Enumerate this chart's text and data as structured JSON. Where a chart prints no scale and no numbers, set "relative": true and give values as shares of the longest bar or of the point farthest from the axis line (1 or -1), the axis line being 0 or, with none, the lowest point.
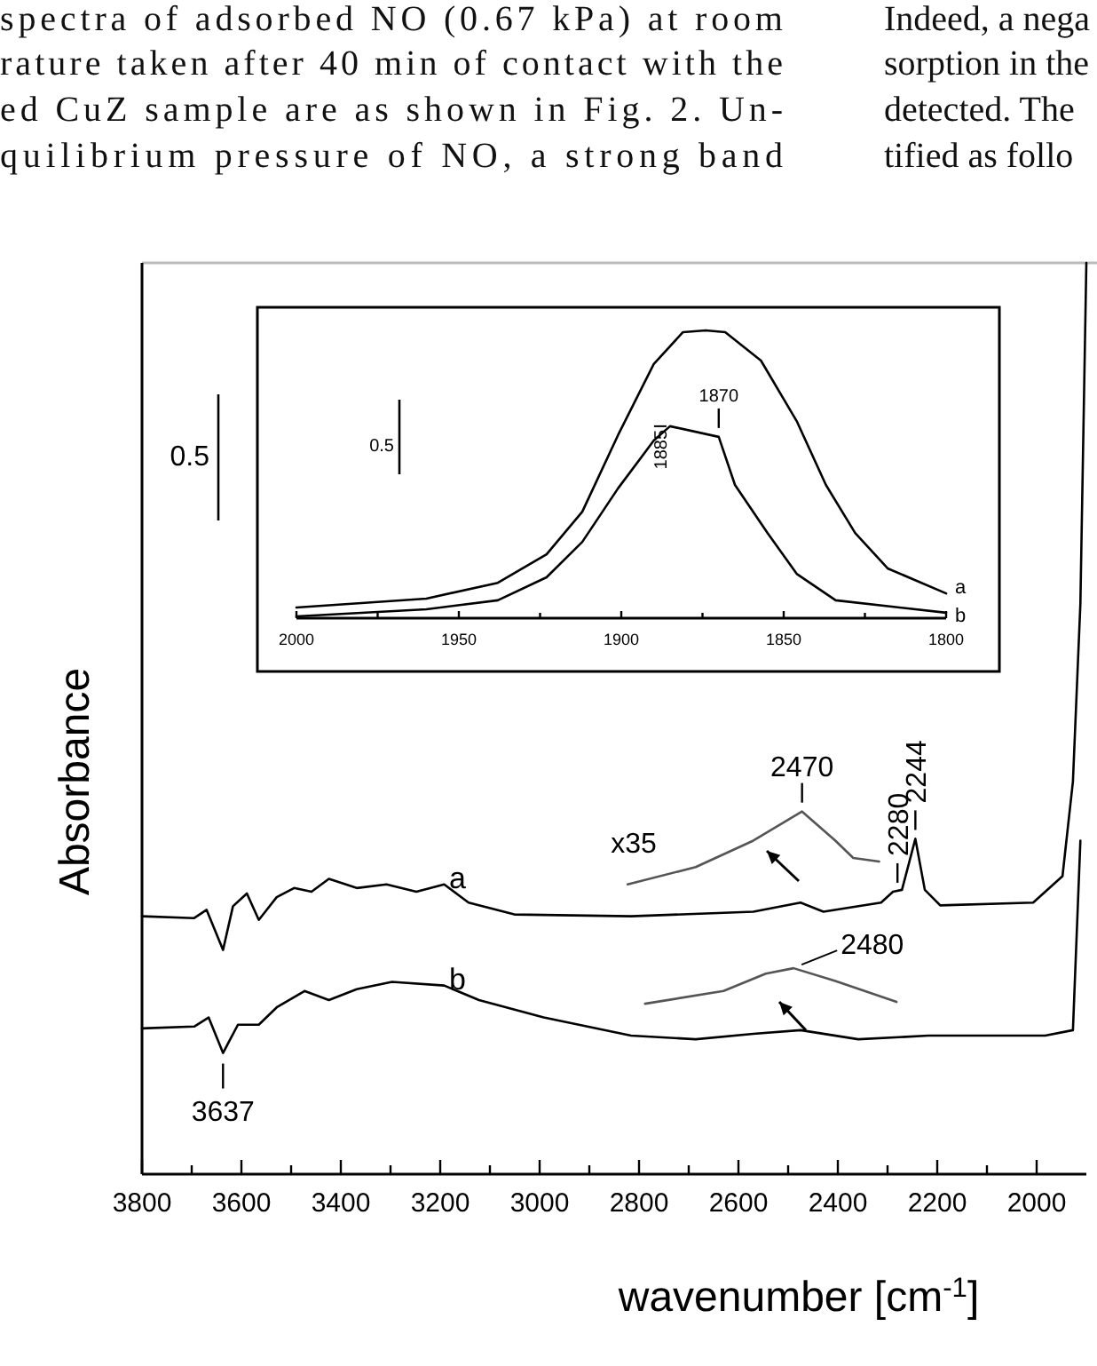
{
  "chart_data": [
    {
      "type": "other",
      "annotations": [
        "spectra of adsorbed NO (0.67 kPa) at room",
        "rature taken after 40 min of contact with the",
        "ed CuZ sample are as shown in Fig. 2. Un-",
        "quilibrium pressure of NO, a strong band",
        "Indeed, a nega",
        "sorption in the",
        "detected. The",
        "tified as follo"
      ]
    },
    {
      "type": "line",
      "relative": true,
      "xlabel": "wavenumber [cm$^{-1}$]",
      "ylabel": "Absorbance",
      "xlim": [
        3800,
        1900
      ],
      "xticks": [
        3800,
        {
          "value": 3700,
          "label": null
        },
        3600,
        {
          "value": 3500,
          "label": null
        },
        3400,
        {
          "value": 3300,
          "label": null
        },
        3200,
        {
          "value": 3100,
          "label": null
        },
        3000,
        {
          "value": 2900,
          "label": null
        },
        2800,
        {
          "value": 2700,
          "label": null
        },
        2600,
        {
          "value": 2500,
          "label": null
        },
        2400,
        {
          "value": 2300,
          "label": null
        },
        2200,
        {
          "value": 2100,
          "label": null
        },
        2000
      ],
      "series": [
        {
          "name": "a",
          "color": "#000000",
          "x": [
            3800,
            3695,
            3670,
            3637,
            3617,
            3589,
            3565,
            3529,
            3494,
            3459,
            3424,
            3368,
            3308,
            3248,
            3192,
            3143,
            3051,
            2816,
            2570,
            2475,
            2429,
            2313,
            2289,
            2271,
            2244,
            2225,
            2194,
            2007,
            1948,
            1927,
            1912,
            1900
          ],
          "values": [
            0.283,
            0.281,
            0.29,
            0.246,
            0.294,
            0.308,
            0.279,
            0.304,
            0.314,
            0.31,
            0.324,
            0.314,
            0.318,
            0.31,
            0.318,
            0.298,
            0.285,
            0.283,
            0.288,
            0.298,
            0.288,
            0.298,
            0.31,
            0.312,
            0.368,
            0.312,
            0.295,
            0.298,
            0.327,
            0.431,
            0.626,
            1
          ]
        },
        {
          "name": "b",
          "color": "#000000",
          "x": [
            3800,
            3695,
            3666,
            3637,
            3607,
            3565,
            3529,
            3473,
            3424,
            3368,
            3297,
            3192,
            3122,
            2992,
            2816,
            2686,
            2570,
            2475,
            2359,
            2218,
            1983,
            1927,
            1912
          ],
          "values": [
            0.16,
            0.162,
            0.172,
            0.133,
            0.164,
            0.164,
            0.183,
            0.201,
            0.191,
            0.203,
            0.211,
            0.207,
            0.191,
            0.172,
            0.152,
            0.148,
            0.154,
            0.158,
            0.148,
            0.152,
            0.152,
            0.158,
            0.366
          ]
        },
        {
          "color": "#555555",
          "x": [
            2823,
            2686,
            2570,
            2472,
            2405,
            2369,
            2317
          ],
          "values": [
            0.318,
            0.337,
            0.366,
            0.398,
            0.366,
            0.347,
            0.343
          ]
        },
        {
          "color": "#555555",
          "x": [
            2788,
            2630,
            2545,
            2489,
            2405,
            2282
          ],
          "values": [
            0.187,
            0.201,
            0.22,
            0.226,
            0.212,
            0.189
          ]
        }
      ],
      "annotations": [
        "x35",
        {
          "text": "3637",
          "x": 3637,
          "y": 0.133
        },
        {
          "text": "2470",
          "x": 2472,
          "y": 0.398
        },
        {
          "text": "2280",
          "x": 2280,
          "y": 0.31
        },
        {
          "text": "2244",
          "x": 2244,
          "y": 0.368
        },
        {
          "text": "2480",
          "x": 2480,
          "y": 0.226
        },
        "0.5"
      ]
    },
    {
      "type": "line",
      "relative": true,
      "xlim": [
        2000,
        1800
      ],
      "xticks": [
        2000,
        {
          "value": 1975,
          "label": null
        },
        1950,
        {
          "value": 1925,
          "label": null
        },
        1900,
        {
          "value": 1875,
          "label": null
        },
        1850,
        {
          "value": 1825,
          "label": null
        },
        1800
      ],
      "series": [
        {
          "name": "a",
          "color": "#000000",
          "x": [
            2000,
            1960,
            1938,
            1923,
            1912,
            1901,
            1890,
            1881,
            1874,
            1868,
            1857,
            1846,
            1837,
            1828,
            1818,
            1800
          ],
          "values": [
            0.037,
            0.068,
            0.123,
            0.222,
            0.37,
            0.636,
            0.883,
            0.994,
            1,
            0.994,
            0.895,
            0.685,
            0.463,
            0.296,
            0.173,
            0.086
          ]
        },
        {
          "name": "b",
          "color": "#000000",
          "x": [
            2000,
            1960,
            1938,
            1923,
            1912,
            1901,
            1890,
            1885,
            1870,
            1865,
            1855,
            1846,
            1834,
            1800
          ],
          "values": [
            0.006,
            0.031,
            0.062,
            0.142,
            0.265,
            0.451,
            0.617,
            0.667,
            0.63,
            0.463,
            0.296,
            0.154,
            0.062,
            0.019
          ]
        }
      ],
      "annotations": [
        {
          "text": "1870",
          "x": 1870,
          "y": 0.63
        },
        {
          "text": "1885",
          "x": 1885,
          "y": 0.667
        },
        "0.5"
      ]
    }
  ]
}
